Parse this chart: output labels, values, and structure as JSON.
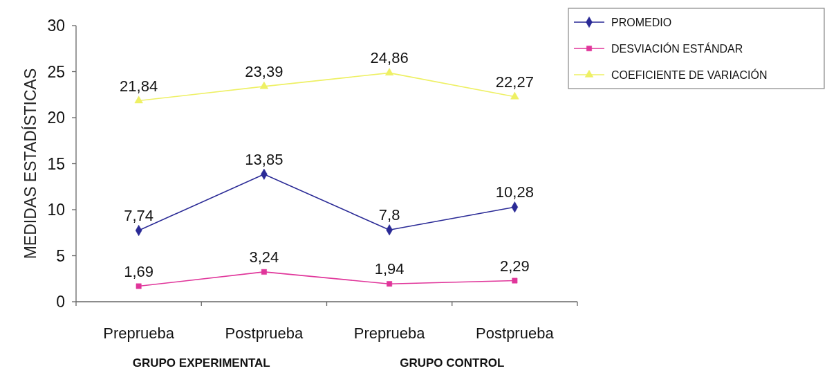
{
  "chart_data": {
    "type": "line",
    "ylabel": "MEDIDAS ESTADÍSTICAS",
    "categories": [
      "Preprueba",
      "Postprueba",
      "Preprueba",
      "Postprueba"
    ],
    "series": [
      {
        "name": "PROMEDIO",
        "color": "#2a2a96",
        "marker": "diamond",
        "values": [
          7.74,
          13.85,
          7.8,
          10.28
        ],
        "value_labels": [
          "7,74",
          "13,85",
          "7,8",
          "10,28"
        ]
      },
      {
        "name": "DESVIACIÓN ESTÁNDAR",
        "color": "#e0359a",
        "marker": "square",
        "values": [
          1.69,
          3.24,
          1.94,
          2.29
        ],
        "value_labels": [
          "1,69",
          "3,24",
          "1,94",
          "2,29"
        ]
      },
      {
        "name": "COEFICIENTE DE VARIACIÓN",
        "color": "#eef064",
        "marker": "triangle",
        "values": [
          21.84,
          23.39,
          24.86,
          22.27
        ],
        "value_labels": [
          "21,84",
          "23,39",
          "24,86",
          "22,27"
        ]
      }
    ],
    "ylim": [
      0,
      30
    ],
    "yticks": [
      0,
      5,
      10,
      15,
      20,
      25,
      30
    ],
    "annotations": [
      "GRUPO EXPERIMENTAL",
      "GRUPO CONTROL"
    ],
    "legend": "top right"
  }
}
